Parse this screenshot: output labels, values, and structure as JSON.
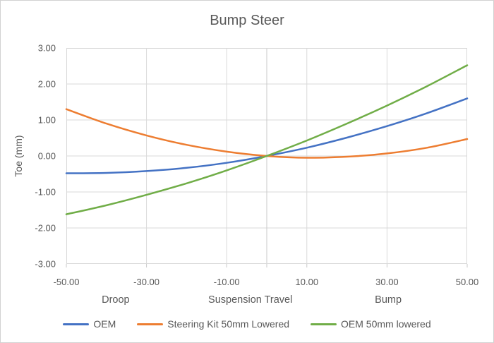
{
  "chart_data": {
    "type": "line",
    "title": "Bump Steer",
    "xlabel": "Suspension Travel",
    "ylabel": "Toe (mm)",
    "xlim": [
      -50,
      50
    ],
    "ylim": [
      -3,
      3
    ],
    "grid": true,
    "legend_position": "bottom",
    "x_tick_labels": [
      "-50.00",
      "-30.00",
      "-10.00",
      "10.00",
      "30.00",
      "50.00"
    ],
    "y_tick_labels": [
      "3.00",
      "2.00",
      "1.00",
      "0.00",
      "-1.00",
      "-2.00",
      "-3.00"
    ],
    "x_axis_tick_marks": [
      -50,
      -30,
      -10,
      0,
      10,
      30,
      50
    ],
    "x_zone_labels": [
      "Droop",
      "Suspension Travel",
      "Bump"
    ],
    "x": [
      -50,
      -40,
      -30,
      -20,
      -10,
      0,
      10,
      20,
      30,
      40,
      50
    ],
    "series": [
      {
        "name": "OEM",
        "color": "#4472C4",
        "values": [
          -0.48,
          -0.47,
          -0.42,
          -0.33,
          -0.19,
          0.0,
          0.23,
          0.51,
          0.83,
          1.19,
          1.6
        ]
      },
      {
        "name": "Steering Kit 50mm Lowered",
        "color": "#ED7D31",
        "values": [
          1.3,
          0.9,
          0.57,
          0.31,
          0.12,
          0.0,
          -0.05,
          -0.02,
          0.07,
          0.23,
          0.47
        ]
      },
      {
        "name": "OEM 50mm lowered",
        "color": "#70AD47",
        "values": [
          -1.62,
          -1.37,
          -1.08,
          -0.76,
          -0.4,
          0.0,
          0.43,
          0.9,
          1.4,
          1.94,
          2.52
        ]
      }
    ],
    "colors": {
      "gridline": "#D9D9D9",
      "zero_axis": "#C9C9C9",
      "plot_border": "#D9D9D9",
      "axis_text": "#595959"
    }
  }
}
